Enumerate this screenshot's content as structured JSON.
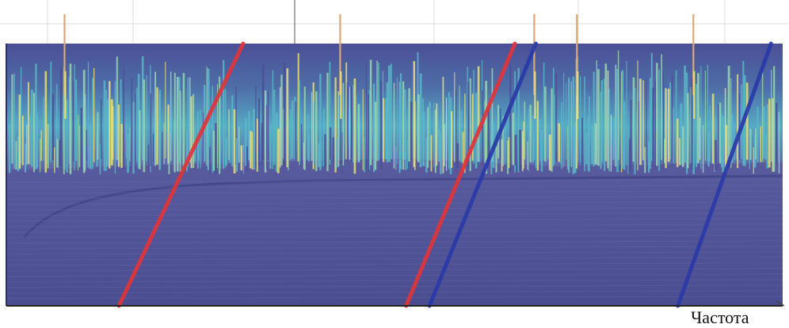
{
  "chart_data": {
    "type": "waterfall",
    "description_style": "3D spectrogram surface viewed from the side, dense spikes in upper band",
    "xlabel": "Частота",
    "ylabel": "",
    "title": "",
    "grid": true,
    "surface_colors": [
      "#4b4f96",
      "#5ab8c8",
      "#9ad6b0",
      "#e6e07a",
      "#d9a878"
    ],
    "background_color": "#ffffff",
    "red_line_color": "#e0353a",
    "blue_line_color": "#2a3aa8",
    "tracking_lines": [
      {
        "color_key": "red_line_color",
        "points": [
          [
            0.145,
            0.0
          ],
          [
            0.305,
            1.0
          ]
        ]
      },
      {
        "color_key": "red_line_color",
        "points": [
          [
            0.515,
            0.0
          ],
          [
            0.655,
            1.0
          ]
        ]
      },
      {
        "color_key": "blue_line_color",
        "points": [
          [
            0.545,
            0.0
          ],
          [
            0.682,
            1.0
          ]
        ]
      },
      {
        "color_key": "blue_line_color",
        "points": [
          [
            0.865,
            0.0
          ],
          [
            0.985,
            1.0
          ]
        ]
      }
    ],
    "tall_peaks": [
      0.075,
      0.43,
      0.68,
      0.735,
      0.885
    ]
  }
}
